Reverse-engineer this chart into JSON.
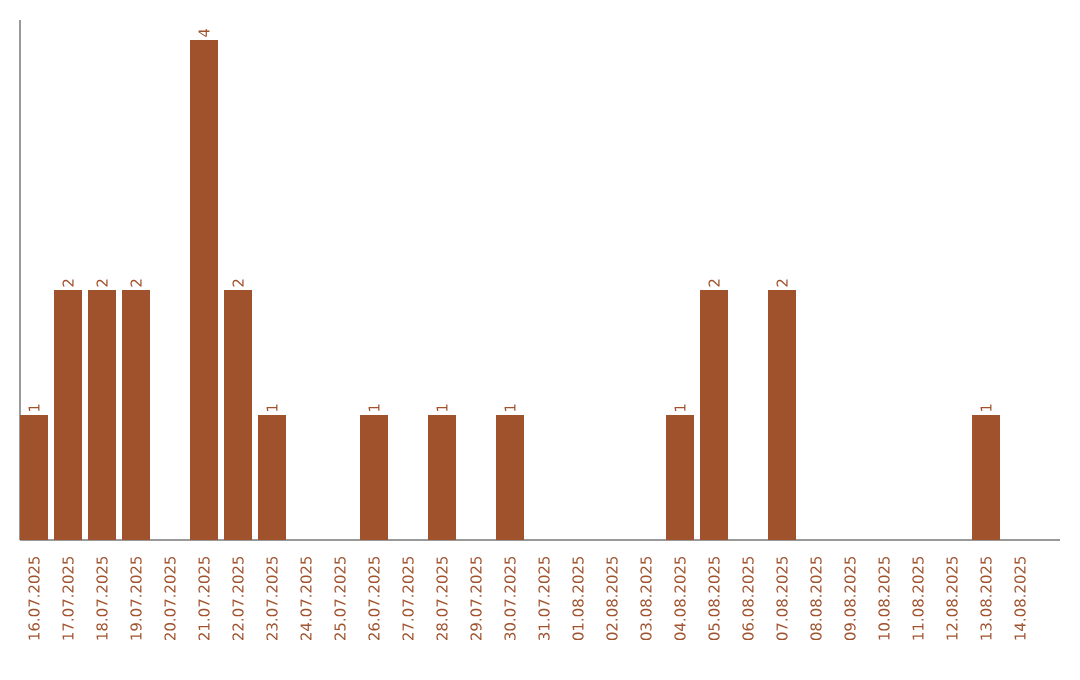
{
  "chart_data": {
    "type": "bar",
    "categories": [
      "16.07.2025",
      "17.07.2025",
      "18.07.2025",
      "19.07.2025",
      "20.07.2025",
      "21.07.2025",
      "22.07.2025",
      "23.07.2025",
      "24.07.2025",
      "25.07.2025",
      "26.07.2025",
      "27.07.2025",
      "28.07.2025",
      "29.07.2025",
      "30.07.2025",
      "31.07.2025",
      "01.08.2025",
      "02.08.2025",
      "03.08.2025",
      "04.08.2025",
      "05.08.2025",
      "06.08.2025",
      "07.08.2025",
      "08.08.2025",
      "09.08.2025",
      "10.08.2025",
      "11.08.2025",
      "12.08.2025",
      "13.08.2025",
      "14.08.2025"
    ],
    "values": [
      1,
      2,
      2,
      2,
      0,
      4,
      2,
      1,
      0,
      0,
      1,
      0,
      1,
      0,
      1,
      0,
      0,
      0,
      0,
      1,
      2,
      0,
      2,
      0,
      0,
      0,
      0,
      0,
      1,
      0
    ],
    "value_labels": [
      "1",
      "2",
      "2",
      "2",
      null,
      "4",
      "2",
      "1",
      null,
      null,
      "1",
      null,
      "1",
      null,
      "1",
      null,
      null,
      null,
      null,
      "1",
      "2",
      null,
      "2",
      null,
      null,
      null,
      null,
      null,
      "1",
      null
    ],
    "color": "#a0522d"
  }
}
